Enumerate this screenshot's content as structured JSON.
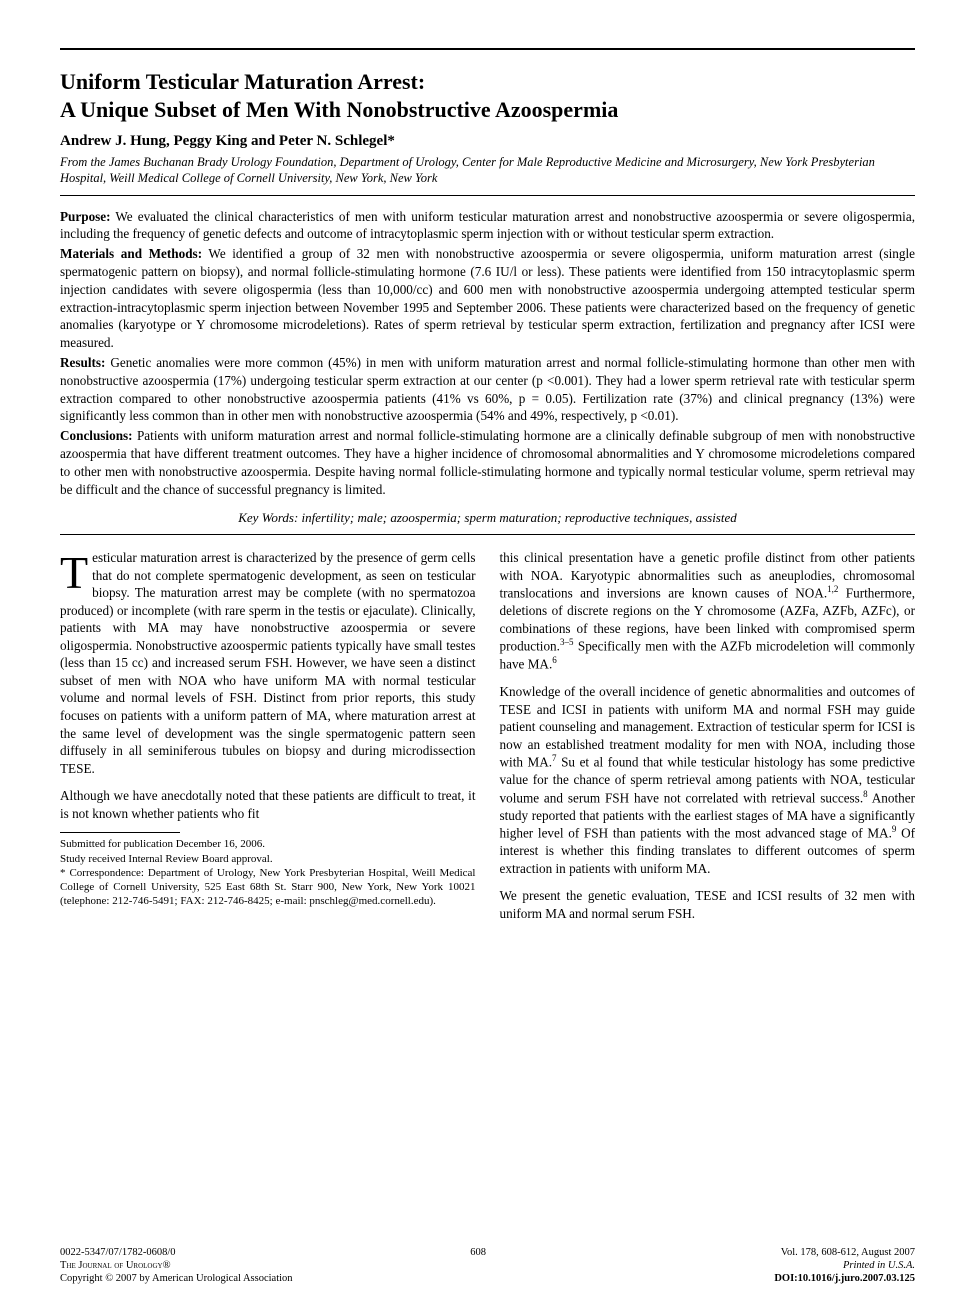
{
  "title_line1": "Uniform Testicular Maturation Arrest:",
  "title_line2": "A Unique Subset of Men With Nonobstructive Azoospermia",
  "authors": "Andrew J. Hung, Peggy King and Peter N. Schlegel*",
  "affiliation": "From the James Buchanan Brady Urology Foundation, Department of Urology, Center for Male Reproductive Medicine and Microsurgery, New York Presbyterian Hospital, Weill Medical College of Cornell University, New York, New York",
  "abstract": {
    "purpose_label": "Purpose:",
    "purpose": " We evaluated the clinical characteristics of men with uniform testicular maturation arrest and nonobstructive azoospermia or severe oligospermia, including the frequency of genetic defects and outcome of intracytoplasmic sperm injection with or without testicular sperm extraction.",
    "methods_label": "Materials and Methods:",
    "methods": " We identified a group of 32 men with nonobstructive azoospermia or severe oligospermia, uniform maturation arrest (single spermatogenic pattern on biopsy), and normal follicle-stimulating hormone (7.6 IU/l or less). These patients were identified from 150 intracytoplasmic sperm injection candidates with severe oligospermia (less than 10,000/cc) and 600 men with nonobstructive azoospermia undergoing attempted testicular sperm extraction-intracytoplasmic sperm injection between November 1995 and September 2006. These patients were characterized based on the frequency of genetic anomalies (karyotype or Y chromosome microdeletions). Rates of sperm retrieval by testicular sperm extraction, fertilization and pregnancy after ICSI were measured.",
    "results_label": "Results:",
    "results": " Genetic anomalies were more common (45%) in men with uniform maturation arrest and normal follicle-stimulating hormone than other men with nonobstructive azoospermia (17%) undergoing testicular sperm extraction at our center (p <0.001). They had a lower sperm retrieval rate with testicular sperm extraction compared to other nonobstructive azoospermia patients (41% vs 60%, p = 0.05). Fertilization rate (37%) and clinical pregnancy (13%) were significantly less common than in other men with nonobstructive azoospermia (54% and 49%, respectively, p <0.01).",
    "conclusions_label": "Conclusions:",
    "conclusions": " Patients with uniform maturation arrest and normal follicle-stimulating hormone are a clinically definable subgroup of men with nonobstructive azoospermia that have different treatment outcomes. They have a higher incidence of chromosomal abnormalities and Y chromosome microdeletions compared to other men with nonobstructive azoospermia. Despite having normal follicle-stimulating hormone and typically normal testicular volume, sperm retrieval may be difficult and the chance of successful pregnancy is limited."
  },
  "keywords": "Key Words: infertility; male; azoospermia; sperm maturation; reproductive techniques, assisted",
  "body": {
    "p1": "Testicular maturation arrest is characterized by the presence of germ cells that do not complete spermatogenic development, as seen on testicular biopsy. The maturation arrest may be complete (with no spermatozoa produced) or incomplete (with rare sperm in the testis or ejaculate). Clinically, patients with MA may have nonobstructive azoospermia or severe oligospermia. Nonobstructive azoospermic patients typically have small testes (less than 15 cc) and increased serum FSH. However, we have seen a distinct subset of men with NOA who have uniform MA with normal testicular volume and normal levels of FSH. Distinct from prior reports, this study focuses on patients with a uniform pattern of MA, where maturation arrest at the same level of development was the single spermatogenic pattern seen diffusely in all seminiferous tubules on biopsy and during microdissection TESE.",
    "p2": "Although we have anecdotally noted that these patients are difficult to treat, it is not known whether patients who fit",
    "p3a": "this clinical presentation have a genetic profile distinct from other patients with NOA. Karyotypic abnormalities such as aneuplodies, chromosomal translocations and inversions are known causes of NOA.",
    "p3b": " Furthermore, deletions of discrete regions on the Y chromosome (AZFa, AZFb, AZFc), or combinations of these regions, have been linked with compromised sperm production.",
    "p3c": " Specifically men with the AZFb microdeletion will commonly have MA.",
    "p4a": "Knowledge of the overall incidence of genetic abnormalities and outcomes of TESE and ICSI in patients with uniform MA and normal FSH may guide patient counseling and management. Extraction of testicular sperm for ICSI is now an established treatment modality for men with NOA, including those with MA.",
    "p4b": " Su et al found that while testicular histology has some predictive value for the chance of sperm retrieval among patients with NOA, testicular volume and serum FSH have not correlated with retrieval success.",
    "p4c": " Another study reported that patients with the earliest stages of MA have a significantly higher level of FSH than patients with the most advanced stage of MA.",
    "p4d": " Of interest is whether this finding translates to different outcomes of sperm extraction in patients with uniform MA.",
    "p5": "We present the genetic evaluation, TESE and ICSI results of 32 men with uniform MA and normal serum FSH."
  },
  "refs": {
    "r12": "1,2",
    "r35": "3–5",
    "r6": "6",
    "r7": "7",
    "r8": "8",
    "r9": "9"
  },
  "footnotes": {
    "f1": "Submitted for publication December 16, 2006.",
    "f2": "Study received Internal Review Board approval.",
    "f3": "* Correspondence: Department of Urology, New York Presbyterian Hospital, Weill Medical College of Cornell University, 525 East 68th St. Starr 900, New York, New York 10021 (telephone: 212-746-5491; FAX: 212-746-8425; e-mail: pnschleg@med.cornell.edu)."
  },
  "footer": {
    "issn": "0022-5347/07/1782-0608/0",
    "journal": "The Journal of Urology",
    "copyright": "Copyright © 2007 by American Urological Association",
    "page": "608",
    "vol": "Vol. 178, 608-612, August 2007",
    "printed": "Printed in U.S.A.",
    "doi": "DOI:10.1016/j.juro.2007.03.125"
  }
}
